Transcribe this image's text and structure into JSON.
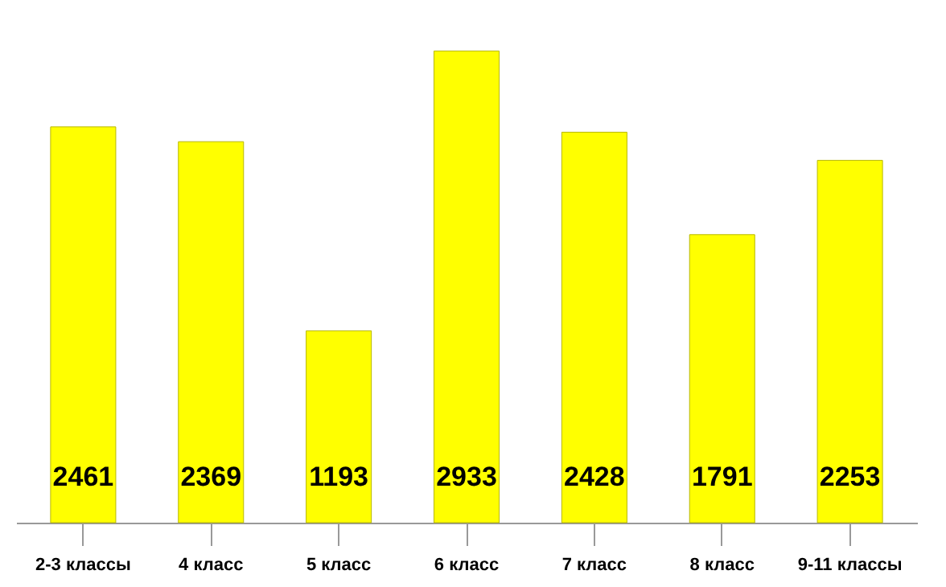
{
  "chart_data": {
    "type": "bar",
    "categories": [
      "2-3 классы",
      "4 класс",
      "5 класс",
      "6 класс",
      "7 класс",
      "8 класс",
      "9-11 классы"
    ],
    "values": [
      2461,
      2369,
      1193,
      2933,
      2428,
      1791,
      2253
    ],
    "color": "#ffff00",
    "data_labels": true
  }
}
